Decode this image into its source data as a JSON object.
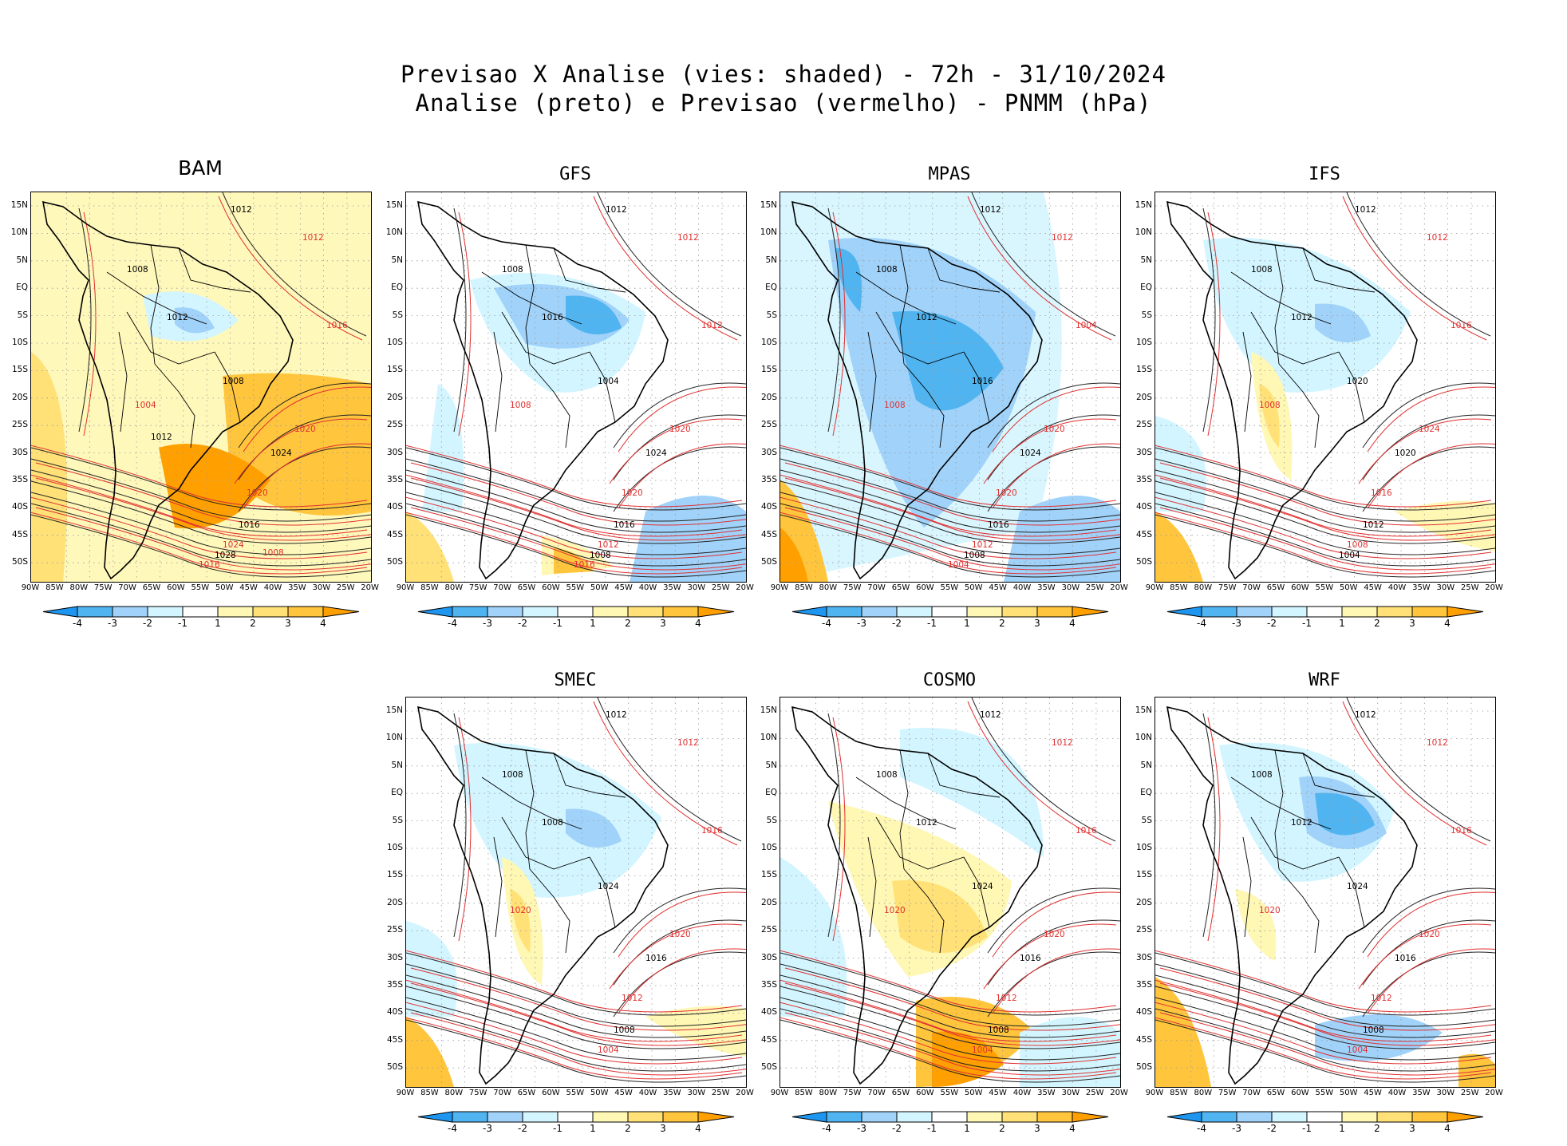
{
  "title": {
    "line1": "Previsao X Analise (vies: shaded) - 72h - 31/10/2024",
    "line2": "Analise (preto) e Previsao (vermelho) - PNMM (hPa)"
  },
  "axes": {
    "lat_labels": [
      "15N",
      "10N",
      "5N",
      "EQ",
      "5S",
      "10S",
      "15S",
      "20S",
      "25S",
      "30S",
      "35S",
      "40S",
      "45S",
      "50S"
    ],
    "lon_labels": [
      "90W",
      "85W",
      "80W",
      "75W",
      "70W",
      "65W",
      "60W",
      "55W",
      "50W",
      "45W",
      "40W",
      "35W",
      "30W",
      "25W",
      "20W"
    ]
  },
  "colorbar": {
    "labels": [
      "-4",
      "-3",
      "-2",
      "-1",
      "1",
      "2",
      "3",
      "4"
    ],
    "colors": [
      "#1e96f0",
      "#50b4f0",
      "#a0d2fa",
      "#d2f5ff",
      "#ffffff",
      "#fff7b4",
      "#ffe178",
      "#ffc53c",
      "#ffa000"
    ]
  },
  "panels": [
    {
      "name": "BAM",
      "bias": "warm",
      "contour_labels": [
        "1012",
        "1012",
        "1008",
        "1016",
        "1012",
        "1004",
        "1008",
        "1020",
        "1024",
        "1020",
        "1016",
        "1024",
        "1028",
        "1016",
        "1012",
        "1008"
      ]
    },
    {
      "name": "GFS",
      "bias": "cool",
      "contour_labels": [
        "1012",
        "1012",
        "1008",
        "1012",
        "1016",
        "1008",
        "1004",
        "1020",
        "1024",
        "1020",
        "1016",
        "1012",
        "1008",
        "1016"
      ]
    },
    {
      "name": "MPAS",
      "bias": "cool-strong",
      "contour_labels": [
        "1012",
        "1012",
        "1008",
        "1004",
        "1012",
        "1008",
        "1016",
        "1020",
        "1024",
        "1020",
        "1016",
        "1012",
        "1008",
        "1004"
      ]
    },
    {
      "name": "IFS",
      "bias": "mixed",
      "contour_labels": [
        "1012",
        "1012",
        "1008",
        "1016",
        "1012",
        "1008",
        "1020",
        "1024",
        "1020",
        "1016",
        "1012",
        "1008",
        "1004"
      ]
    },
    {
      "name": "SMEC",
      "bias": "mixed",
      "contour_labels": [
        "1012",
        "1012",
        "1008",
        "1016",
        "1008",
        "1020",
        "1024",
        "1020",
        "1016",
        "1012",
        "1008",
        "1004"
      ]
    },
    {
      "name": "COSMO",
      "bias": "warm-south",
      "contour_labels": [
        "1012",
        "1012",
        "1008",
        "1016",
        "1012",
        "1020",
        "1024",
        "1020",
        "1016",
        "1012",
        "1008",
        "1004"
      ]
    },
    {
      "name": "WRF",
      "bias": "cool-south",
      "contour_labels": [
        "1012",
        "1012",
        "1008",
        "1016",
        "1012",
        "1020",
        "1024",
        "1020",
        "1016",
        "1012",
        "1008",
        "1004"
      ]
    }
  ]
}
